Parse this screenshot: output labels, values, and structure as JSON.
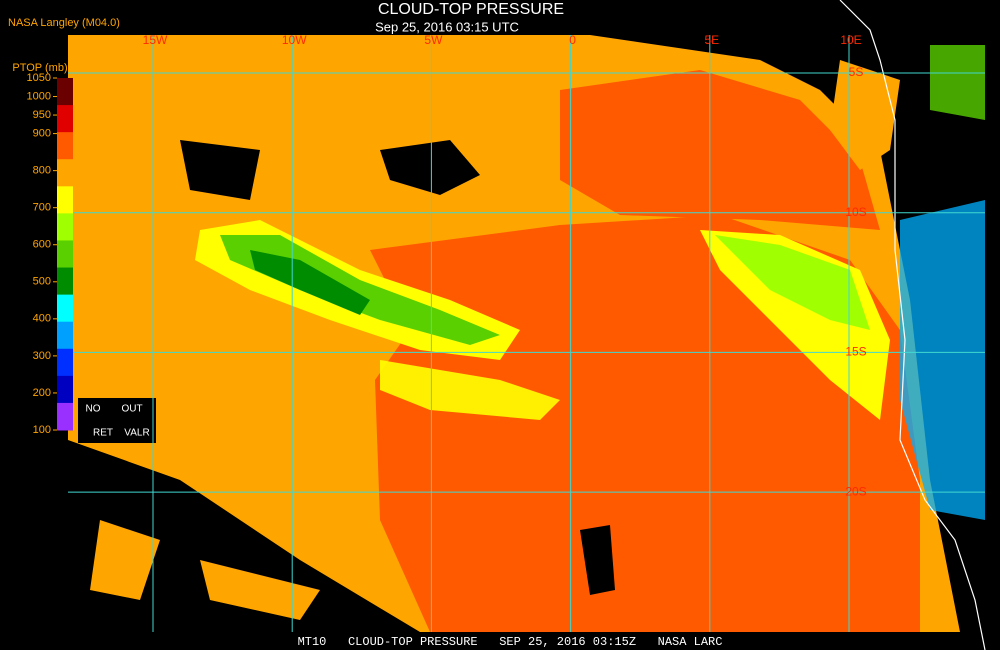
{
  "header": {
    "source": "NASA Langley (M04.0)",
    "title": "CLOUD-TOP PRESSURE",
    "subtitle": "Sep 25, 2016 03:15 UTC"
  },
  "map": {
    "longitude_labels": [
      "15W",
      "10W",
      "5W",
      "0",
      "5E",
      "10E"
    ],
    "latitude_labels": [
      "5S",
      "10S",
      "15S",
      "20S"
    ],
    "grid_color": "#40d8d0"
  },
  "legend": {
    "title": "PTOP (mb)",
    "ticks": [
      1050,
      1000,
      950,
      900,
      800,
      700,
      600,
      500,
      400,
      300,
      200,
      100
    ],
    "colors": [
      "#6b0000",
      "#e00000",
      "#ff5a00",
      "#ffa500",
      "#ffff00",
      "#a0ff00",
      "#5ad000",
      "#008c00",
      "#00ffff",
      "#00a0ff",
      "#0030ff",
      "#0000c0",
      "#9a30ff"
    ],
    "notes": [
      "NO",
      "OUT",
      "RET",
      "VALR"
    ]
  },
  "footer": "MT10   CLOUD-TOP PRESSURE   SEP 25, 2016 03:15Z   NASA LARC"
}
